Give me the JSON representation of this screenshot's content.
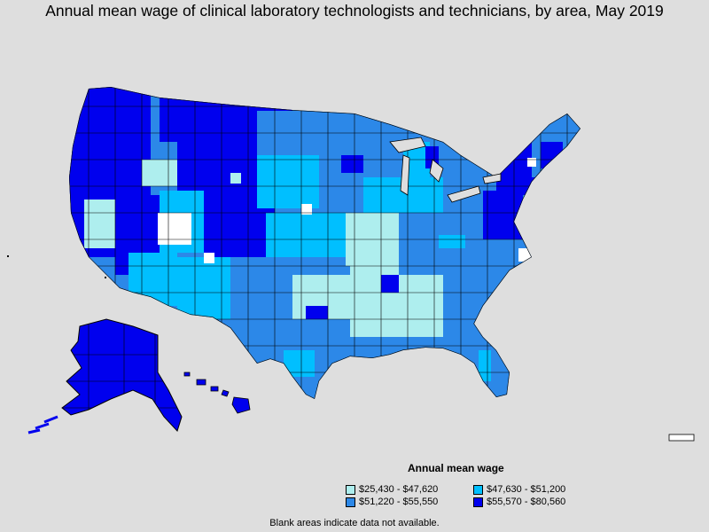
{
  "title": "Annual mean wage of clinical laboratory technologists and technicians, by area, May 2019",
  "legend": {
    "title": "Annual mean wage",
    "items": [
      {
        "label": "$25,430 - $47,620",
        "color": "#aeeeee"
      },
      {
        "label": "$47,630 - $51,200",
        "color": "#00bfff"
      },
      {
        "label": "$51,220 - $55,550",
        "color": "#2c88e8"
      },
      {
        "label": "$55,570 - $80,560",
        "color": "#0000ee"
      }
    ]
  },
  "footnote": "Blank areas indicate data not available.",
  "colors": {
    "background": "#dedede",
    "border": "#000000",
    "no_data": "#ffffff"
  }
}
